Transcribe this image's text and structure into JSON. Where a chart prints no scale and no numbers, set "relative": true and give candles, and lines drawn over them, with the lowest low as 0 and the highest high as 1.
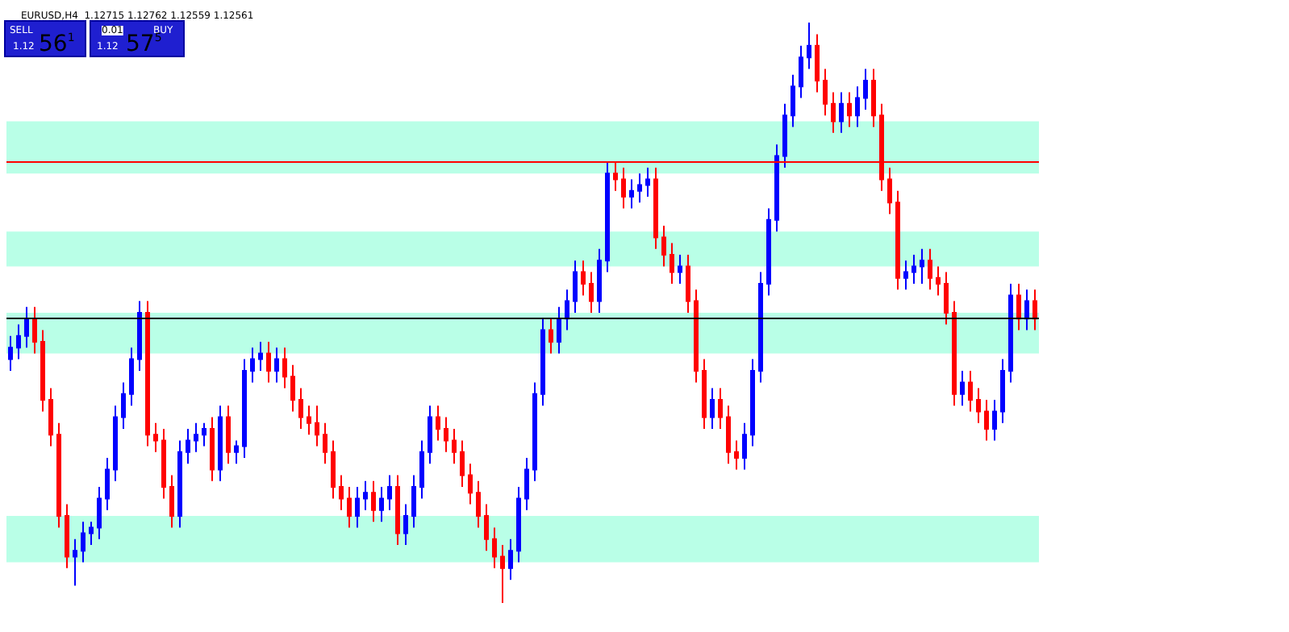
{
  "chart_data": {
    "type": "candlestick",
    "relative": true,
    "title": "EURUSD,H4  1.12715 1.12762 1.12559 1.12561",
    "annotations": [
      "SELL",
      "0.01",
      "BUY",
      "1.12",
      "56$^{1}$",
      "1.12",
      "57$^{5}$"
    ],
    "categories": [
      null,
      null,
      null,
      null,
      null,
      null,
      null,
      null,
      null,
      null,
      null,
      null,
      null,
      null,
      null,
      null,
      null,
      null,
      null,
      null,
      null,
      null,
      null,
      null,
      null,
      null,
      null,
      null,
      null,
      null,
      null,
      null,
      null,
      null,
      null,
      null,
      null,
      null,
      null,
      null,
      null,
      null,
      null,
      null,
      null,
      null,
      null,
      null,
      null,
      null,
      null,
      null,
      null,
      null,
      null,
      null,
      null,
      null,
      null,
      null,
      null,
      null,
      null,
      null,
      null,
      null,
      null,
      null,
      null,
      null,
      null,
      null,
      null,
      null,
      null,
      null,
      null,
      null,
      null,
      null,
      null,
      null,
      null,
      null,
      null,
      null,
      null,
      null,
      null,
      null,
      null,
      null,
      null,
      null,
      null,
      null,
      null,
      null,
      null,
      null,
      null,
      null,
      null,
      null,
      null,
      null,
      null,
      null,
      null,
      null,
      null,
      null,
      null,
      null,
      null,
      null,
      null,
      null,
      null,
      null,
      null,
      null,
      null,
      null,
      null,
      null,
      null,
      null
    ],
    "ohlc": [
      [
        0.42,
        0.46,
        0.4,
        0.44
      ],
      [
        0.44,
        0.48,
        0.42,
        0.46
      ],
      [
        0.46,
        0.51,
        0.44,
        0.49
      ],
      [
        0.49,
        0.51,
        0.43,
        0.45
      ],
      [
        0.45,
        0.47,
        0.33,
        0.35
      ],
      [
        0.35,
        0.37,
        0.27,
        0.29
      ],
      [
        0.29,
        0.31,
        0.13,
        0.15
      ],
      [
        0.15,
        0.17,
        0.06,
        0.08
      ],
      [
        0.08,
        0.11,
        0.03,
        0.09
      ],
      [
        0.09,
        0.14,
        0.07,
        0.12
      ],
      [
        0.12,
        0.14,
        0.1,
        0.13
      ],
      [
        0.13,
        0.2,
        0.11,
        0.18
      ],
      [
        0.18,
        0.25,
        0.16,
        0.23
      ],
      [
        0.23,
        0.34,
        0.21,
        0.32
      ],
      [
        0.32,
        0.38,
        0.3,
        0.36
      ],
      [
        0.36,
        0.44,
        0.34,
        0.42
      ],
      [
        0.42,
        0.52,
        0.4,
        0.5
      ],
      [
        0.5,
        0.52,
        0.27,
        0.29
      ],
      [
        0.29,
        0.31,
        0.26,
        0.28
      ],
      [
        0.28,
        0.3,
        0.18,
        0.2
      ],
      [
        0.2,
        0.22,
        0.13,
        0.15
      ],
      [
        0.15,
        0.28,
        0.13,
        0.26
      ],
      [
        0.26,
        0.3,
        0.24,
        0.28
      ],
      [
        0.28,
        0.31,
        0.26,
        0.29
      ],
      [
        0.29,
        0.31,
        0.27,
        0.3
      ],
      [
        0.3,
        0.32,
        0.21,
        0.23
      ],
      [
        0.23,
        0.34,
        0.21,
        0.32
      ],
      [
        0.32,
        0.34,
        0.24,
        0.26
      ],
      [
        0.26,
        0.28,
        0.24,
        0.27
      ],
      [
        0.27,
        0.42,
        0.25,
        0.4
      ],
      [
        0.4,
        0.44,
        0.38,
        0.42
      ],
      [
        0.42,
        0.45,
        0.4,
        0.43
      ],
      [
        0.43,
        0.45,
        0.38,
        0.4
      ],
      [
        0.4,
        0.44,
        0.38,
        0.42
      ],
      [
        0.42,
        0.44,
        0.37,
        0.39
      ],
      [
        0.39,
        0.41,
        0.33,
        0.35
      ],
      [
        0.35,
        0.37,
        0.3,
        0.32
      ],
      [
        0.32,
        0.34,
        0.29,
        0.31
      ],
      [
        0.31,
        0.34,
        0.27,
        0.29
      ],
      [
        0.29,
        0.31,
        0.24,
        0.26
      ],
      [
        0.26,
        0.28,
        0.18,
        0.2
      ],
      [
        0.2,
        0.22,
        0.16,
        0.18
      ],
      [
        0.18,
        0.2,
        0.13,
        0.15
      ],
      [
        0.15,
        0.2,
        0.13,
        0.18
      ],
      [
        0.18,
        0.21,
        0.16,
        0.19
      ],
      [
        0.19,
        0.21,
        0.14,
        0.16
      ],
      [
        0.16,
        0.2,
        0.14,
        0.18
      ],
      [
        0.18,
        0.22,
        0.16,
        0.2
      ],
      [
        0.2,
        0.22,
        0.1,
        0.12
      ],
      [
        0.12,
        0.17,
        0.1,
        0.15
      ],
      [
        0.15,
        0.22,
        0.13,
        0.2
      ],
      [
        0.2,
        0.28,
        0.18,
        0.26
      ],
      [
        0.26,
        0.34,
        0.24,
        0.32
      ],
      [
        0.32,
        0.34,
        0.28,
        0.3
      ],
      [
        0.3,
        0.32,
        0.26,
        0.28
      ],
      [
        0.28,
        0.3,
        0.24,
        0.26
      ],
      [
        0.26,
        0.28,
        0.2,
        0.22
      ],
      [
        0.22,
        0.24,
        0.17,
        0.19
      ],
      [
        0.19,
        0.21,
        0.13,
        0.15
      ],
      [
        0.15,
        0.17,
        0.09,
        0.11
      ],
      [
        0.11,
        0.13,
        0.06,
        0.08
      ],
      [
        0.08,
        0.1,
        0.0,
        0.06
      ],
      [
        0.06,
        0.11,
        0.04,
        0.09
      ],
      [
        0.09,
        0.2,
        0.07,
        0.18
      ],
      [
        0.18,
        0.25,
        0.16,
        0.23
      ],
      [
        0.23,
        0.38,
        0.21,
        0.36
      ],
      [
        0.36,
        0.49,
        0.34,
        0.47
      ],
      [
        0.47,
        0.49,
        0.43,
        0.45
      ],
      [
        0.45,
        0.51,
        0.43,
        0.49
      ],
      [
        0.49,
        0.54,
        0.47,
        0.52
      ],
      [
        0.52,
        0.59,
        0.5,
        0.57
      ],
      [
        0.57,
        0.59,
        0.53,
        0.55
      ],
      [
        0.55,
        0.57,
        0.5,
        0.52
      ],
      [
        0.52,
        0.61,
        0.5,
        0.59
      ],
      [
        0.59,
        0.76,
        0.57,
        0.74
      ],
      [
        0.74,
        0.76,
        0.71,
        0.73
      ],
      [
        0.73,
        0.75,
        0.68,
        0.7
      ],
      [
        0.7,
        0.73,
        0.68,
        0.71
      ],
      [
        0.71,
        0.74,
        0.69,
        0.72
      ],
      [
        0.72,
        0.75,
        0.7,
        0.73
      ],
      [
        0.73,
        0.75,
        0.61,
        0.63
      ],
      [
        0.63,
        0.65,
        0.58,
        0.6
      ],
      [
        0.6,
        0.62,
        0.55,
        0.57
      ],
      [
        0.57,
        0.6,
        0.55,
        0.58
      ],
      [
        0.58,
        0.6,
        0.5,
        0.52
      ],
      [
        0.52,
        0.54,
        0.38,
        0.4
      ],
      [
        0.4,
        0.42,
        0.3,
        0.32
      ],
      [
        0.32,
        0.37,
        0.3,
        0.35
      ],
      [
        0.35,
        0.37,
        0.3,
        0.32
      ],
      [
        0.32,
        0.34,
        0.24,
        0.26
      ],
      [
        0.26,
        0.28,
        0.23,
        0.25
      ],
      [
        0.25,
        0.31,
        0.23,
        0.29
      ],
      [
        0.29,
        0.42,
        0.27,
        0.4
      ],
      [
        0.4,
        0.57,
        0.38,
        0.55
      ],
      [
        0.55,
        0.68,
        0.53,
        0.66
      ],
      [
        0.66,
        0.79,
        0.64,
        0.77
      ],
      [
        0.77,
        0.86,
        0.75,
        0.84
      ],
      [
        0.84,
        0.91,
        0.82,
        0.89
      ],
      [
        0.89,
        0.96,
        0.87,
        0.94
      ],
      [
        0.94,
        1.0,
        0.92,
        0.96
      ],
      [
        0.96,
        0.98,
        0.88,
        0.9
      ],
      [
        0.9,
        0.92,
        0.84,
        0.86
      ],
      [
        0.86,
        0.88,
        0.81,
        0.83
      ],
      [
        0.83,
        0.88,
        0.81,
        0.86
      ],
      [
        0.86,
        0.88,
        0.82,
        0.84
      ],
      [
        0.84,
        0.89,
        0.82,
        0.87
      ],
      [
        0.87,
        0.92,
        0.85,
        0.9
      ],
      [
        0.9,
        0.92,
        0.82,
        0.84
      ],
      [
        0.84,
        0.86,
        0.71,
        0.73
      ],
      [
        0.73,
        0.75,
        0.67,
        0.69
      ],
      [
        0.69,
        0.71,
        0.54,
        0.56
      ],
      [
        0.56,
        0.59,
        0.54,
        0.57
      ],
      [
        0.57,
        0.6,
        0.55,
        0.58
      ],
      [
        0.58,
        0.61,
        0.55,
        0.59
      ],
      [
        0.59,
        0.61,
        0.54,
        0.56
      ],
      [
        0.56,
        0.58,
        0.53,
        0.55
      ],
      [
        0.55,
        0.57,
        0.48,
        0.5
      ],
      [
        0.5,
        0.52,
        0.34,
        0.36
      ],
      [
        0.36,
        0.4,
        0.34,
        0.38
      ],
      [
        0.38,
        0.4,
        0.33,
        0.35
      ],
      [
        0.35,
        0.37,
        0.31,
        0.33
      ],
      [
        0.33,
        0.35,
        0.28,
        0.3
      ],
      [
        0.3,
        0.35,
        0.28,
        0.33
      ],
      [
        0.33,
        0.42,
        0.31,
        0.4
      ],
      [
        0.4,
        0.55,
        0.38,
        0.53
      ],
      [
        0.53,
        0.55,
        0.47,
        0.49
      ],
      [
        0.49,
        0.54,
        0.47,
        0.52
      ],
      [
        0.52,
        0.54,
        0.47,
        0.49
      ]
    ],
    "ref_lines": [
      {
        "axis": "y",
        "value": 0.49,
        "color": "#000000"
      },
      {
        "axis": "y",
        "value": 0.76,
        "color": "#ff0000"
      }
    ],
    "bands": [
      {
        "axis": "y",
        "from": 0.58,
        "to": 0.64,
        "color": "#7fffd4"
      },
      {
        "axis": "y",
        "from": 0.43,
        "to": 0.5,
        "color": "#7fffd4"
      },
      {
        "axis": "y",
        "from": 0.07,
        "to": 0.15,
        "color": "#7fffd4"
      },
      {
        "axis": "y",
        "from": 0.74,
        "to": 0.83,
        "color": "#7fffd4"
      }
    ]
  }
}
